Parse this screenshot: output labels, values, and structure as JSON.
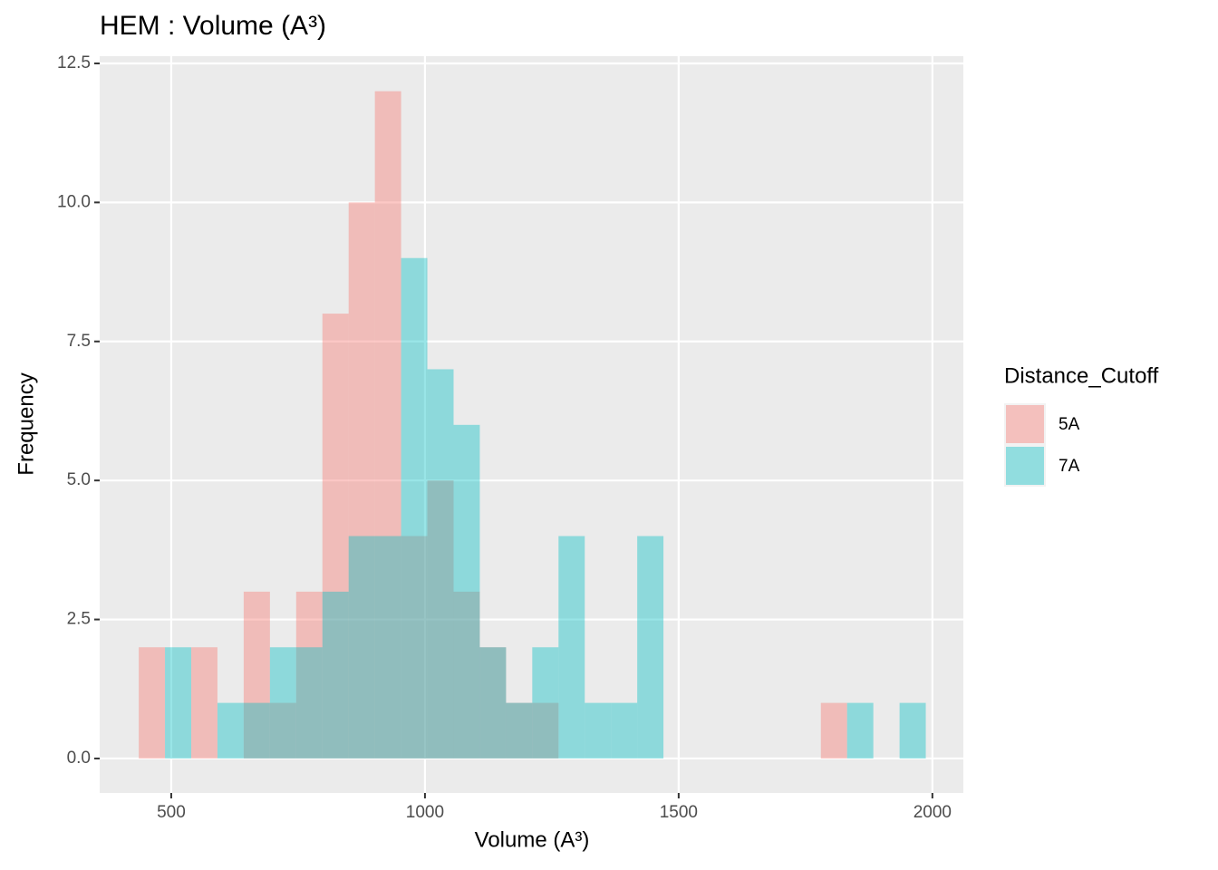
{
  "chart_data": {
    "type": "histogram",
    "title": "HEM : Volume (A³)",
    "x_label": "Volume (A³)",
    "y_label": "Frequency",
    "legend_title": "Distance_Cutoff",
    "legend_position": "right",
    "grid": true,
    "opacity": 0.4,
    "bins": [
      436.0,
      487.7,
      539.4,
      591.1,
      642.8,
      694.5,
      746.2,
      797.9,
      849.6,
      901.3,
      953.0,
      1004.7,
      1056.4,
      1108.1,
      1159.8,
      1211.5,
      1263.2,
      1314.9,
      1366.6,
      1418.3,
      1470.0,
      1521.7,
      1573.4,
      1625.1,
      1676.8,
      1728.5,
      1780.2,
      1831.9,
      1883.6,
      1935.3,
      1987.0
    ],
    "series": [
      {
        "name": "5A",
        "color": "#F8766D",
        "values": [
          2,
          0,
          2,
          0,
          3,
          1,
          3,
          8,
          10,
          12,
          4,
          5,
          3,
          2,
          1,
          1,
          0,
          0,
          0,
          0,
          0,
          0,
          0,
          0,
          0,
          0,
          1,
          0,
          0,
          0
        ]
      },
      {
        "name": "7A",
        "color": "#00BFC4",
        "values": [
          0,
          2,
          0,
          1,
          1,
          2,
          2,
          3,
          4,
          4,
          9,
          7,
          6,
          2,
          1,
          2,
          4,
          1,
          1,
          4,
          0,
          0,
          0,
          0,
          0,
          0,
          0,
          1,
          0,
          1
        ]
      }
    ],
    "xlim": [
      359,
      2061
    ],
    "xticks": [
      500,
      1000,
      1500,
      2000
    ],
    "ylim": [
      -0.62,
      12.63
    ],
    "yticks": [
      {
        "value": 0,
        "label": "0.0"
      },
      {
        "value": 2.5,
        "label": "2.5"
      },
      {
        "value": 5,
        "label": "5.0"
      },
      {
        "value": 7.5,
        "label": "7.5"
      },
      {
        "value": 10,
        "label": "10.0"
      },
      {
        "value": 12.5,
        "label": "12.5"
      }
    ]
  }
}
